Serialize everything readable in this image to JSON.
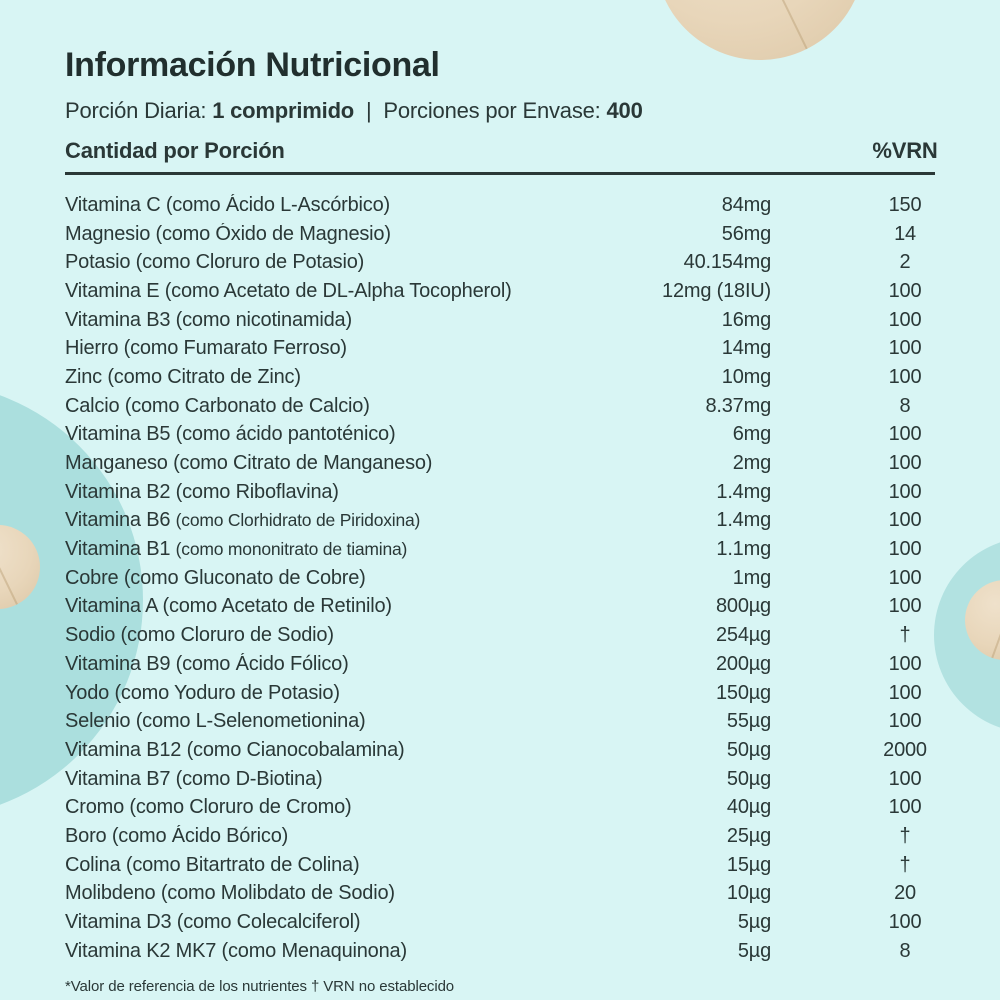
{
  "page": {
    "background_color": "#d8f5f4",
    "accent_teal": "#abdfde",
    "tablet_beige": "#e8d6ba",
    "text_color": "#2a3837"
  },
  "header": {
    "title": "Información Nutricional",
    "serving_label": "Porción Diaria:",
    "serving_value": "1 comprimido",
    "separator": "|",
    "servings_label": "Porciones por Envase:",
    "servings_value": "400",
    "column_left": "Cantidad por Porción",
    "column_right": "%VRN"
  },
  "table": {
    "rows": [
      {
        "name": "Vitamina C",
        "source": "(como Ácido L-Ascórbico)",
        "amount": "84mg",
        "vrn": "150"
      },
      {
        "name": "Magnesio",
        "source": "(como Óxido de Magnesio)",
        "amount": "56mg",
        "vrn": "14"
      },
      {
        "name": "Potasio",
        "source": "(como Cloruro de Potasio)",
        "amount": "40.154mg",
        "vrn": "2"
      },
      {
        "name": "Vitamina E",
        "source": "(como Acetato de DL-Alpha Tocopherol)",
        "amount": "12mg (18IU)",
        "vrn": "100"
      },
      {
        "name": "Vitamina B3",
        "source": "(como nicotinamida)",
        "amount": "16mg",
        "vrn": "100"
      },
      {
        "name": "Hierro",
        "source": "(como Fumarato Ferroso)",
        "amount": "14mg",
        "vrn": "100"
      },
      {
        "name": "Zinc",
        "source": "(como Citrato de Zinc)",
        "amount": "10mg",
        "vrn": "100"
      },
      {
        "name": "Calcio",
        "source": "(como Carbonato de Calcio)",
        "amount": "8.37mg",
        "vrn": "8"
      },
      {
        "name": "Vitamina B5",
        "source": "(como ácido pantoténico)",
        "amount": "6mg",
        "vrn": "100"
      },
      {
        "name": "Manganeso",
        "source": "(como Citrato de Manganeso)",
        "amount": "2mg",
        "vrn": "100"
      },
      {
        "name": "Vitamina B2",
        "source": "(como Riboflavina)",
        "amount": "1.4mg",
        "vrn": "100"
      },
      {
        "name": "Vitamina B6",
        "source": "(como Clorhidrato de Piridoxina)",
        "amount": "1.4mg",
        "vrn": "100",
        "small_source": true
      },
      {
        "name": "Vitamina B1",
        "source": "(como mononitrato de tiamina)",
        "amount": "1.1mg",
        "vrn": "100",
        "small_source": true
      },
      {
        "name": "Cobre",
        "source": "(como Gluconato de Cobre)",
        "amount": "1mg",
        "vrn": "100"
      },
      {
        "name": "Vitamina A",
        "source": "(como Acetato de Retinilo)",
        "amount": "800µg",
        "vrn": "100"
      },
      {
        "name": "Sodio",
        "source": "(como Cloruro de Sodio)",
        "amount": "254µg",
        "vrn": "†"
      },
      {
        "name": "Vitamina B9",
        "source": "(como Ácido Fólico)",
        "amount": "200µg",
        "vrn": "100"
      },
      {
        "name": "Yodo",
        "source": "(como Yoduro de Potasio)",
        "amount": "150µg",
        "vrn": "100"
      },
      {
        "name": "Selenio",
        "source": "(como L-Selenometionina)",
        "amount": "55µg",
        "vrn": "100"
      },
      {
        "name": "Vitamina B12",
        "source": "(como Cianocobalamina)",
        "amount": "50µg",
        "vrn": "2000"
      },
      {
        "name": "Vitamina B7",
        "source": "(como D-Biotina)",
        "amount": "50µg",
        "vrn": "100"
      },
      {
        "name": "Cromo",
        "source": "(como Cloruro de Cromo)",
        "amount": "40µg",
        "vrn": "100"
      },
      {
        "name": "Boro",
        "source": "(como Ácido Bórico)",
        "amount": "25µg",
        "vrn": "†"
      },
      {
        "name": "Colina",
        "source": "(como Bitartrato de Colina)",
        "amount": "15µg",
        "vrn": "†"
      },
      {
        "name": "Molibdeno",
        "source": "(como Molibdato de Sodio)",
        "amount": "10µg",
        "vrn": "20"
      },
      {
        "name": "Vitamina D3",
        "source": "(como Colecalciferol)",
        "amount": "5µg",
        "vrn": "100"
      },
      {
        "name": "Vitamina K2 MK7",
        "source": "(como Menaquinona)",
        "amount": "5µg",
        "vrn": "8"
      }
    ]
  },
  "footnote": "*Valor de referencia de los nutrientes † VRN no establecido"
}
